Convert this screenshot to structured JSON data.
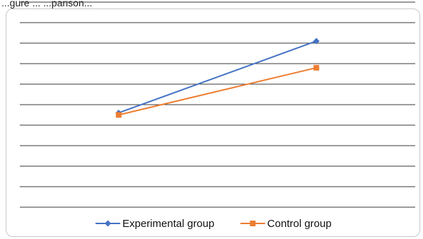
{
  "caption": "...gure ... ...parison...",
  "chart_data": {
    "type": "line",
    "categories": [
      "",
      ""
    ],
    "series": [
      {
        "name": "Experimental group",
        "values": [
          5.6,
          9.1
        ],
        "color": "#4472c4",
        "marker": "diamond"
      },
      {
        "name": "Control group",
        "values": [
          5.5,
          7.8
        ],
        "color": "#ed7d31",
        "marker": "square"
      }
    ],
    "ylim": [
      0,
      11
    ],
    "grid": true,
    "legend": "bottom",
    "title": "",
    "xlabel": "",
    "ylabel": ""
  }
}
